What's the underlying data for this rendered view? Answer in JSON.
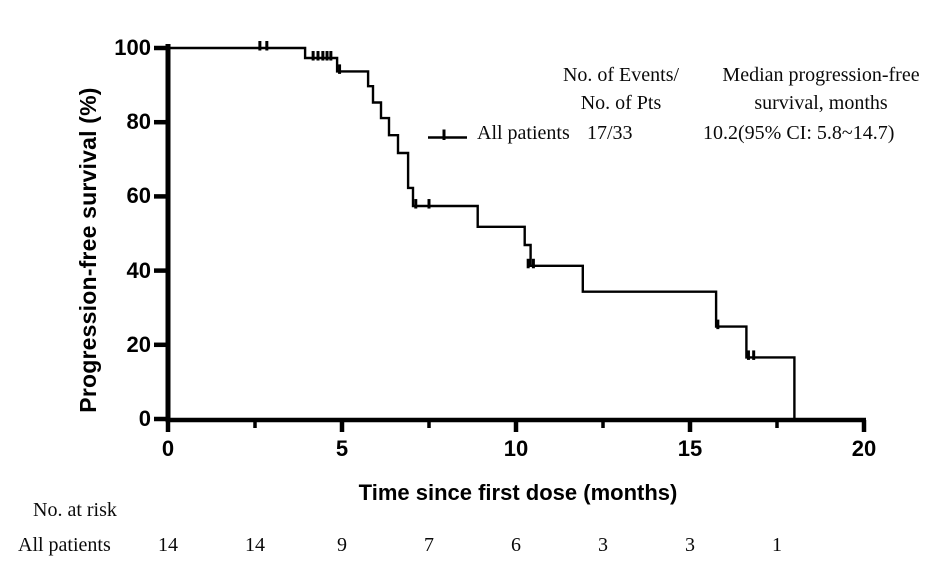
{
  "figure": {
    "y_axis_title": "Progression-free survival (%)",
    "x_axis_title": "Time since first dose (months)",
    "legend": {
      "col1_header_line1": "No. of Events/",
      "col1_header_line2": "No. of Pts",
      "col2_header_line1": "Median progression-free",
      "col2_header_line2": "survival, months",
      "series_label": "All patients",
      "events_over_pts": "17/33",
      "median_value": "10.2(95% CI: 5.8~14.7)"
    },
    "at_risk": {
      "title": "No. at risk",
      "row_label": "All patients",
      "counts": [
        "14",
        "14",
        "9",
        "7",
        "6",
        "3",
        "3",
        "1"
      ]
    }
  },
  "chart_data": {
    "type": "line",
    "subtype": "kaplan-meier-step",
    "title": "",
    "xlabel": "Time since first dose (months)",
    "ylabel": "Progression-free survival (%)",
    "xlim": [
      0,
      20
    ],
    "ylim": [
      0,
      100
    ],
    "x_major_ticks": [
      0,
      5,
      10,
      15,
      20
    ],
    "x_minor_ticks": [
      2.5,
      7.5,
      12.5,
      17.5
    ],
    "y_ticks": [
      100,
      80,
      60,
      40,
      20,
      0
    ],
    "grid": false,
    "legend_position": "upper-right-inside",
    "line_color": "#000000",
    "series": [
      {
        "name": "All patients",
        "events_over_pts": "17/33",
        "median_pfs": "10.2(95% CI: 5.8~14.7)",
        "steps": [
          [
            0,
            100
          ],
          [
            3.94,
            97.3
          ],
          [
            4.86,
            93.7
          ],
          [
            5.75,
            89.7
          ],
          [
            5.89,
            85.3
          ],
          [
            6.12,
            81.1
          ],
          [
            6.35,
            76.5
          ],
          [
            6.61,
            71.7
          ],
          [
            6.9,
            62.3
          ],
          [
            7.04,
            57.4
          ],
          [
            8.9,
            51.8
          ],
          [
            10.25,
            46.9
          ],
          [
            10.42,
            41.3
          ],
          [
            11.92,
            34.3
          ],
          [
            15.75,
            24.9
          ],
          [
            16.62,
            16.6
          ],
          [
            18.0,
            0
          ]
        ],
        "censor_marks": [
          [
            2.64,
            100
          ],
          [
            2.84,
            100
          ],
          [
            4.17,
            97.3
          ],
          [
            4.31,
            97.3
          ],
          [
            4.45,
            97.3
          ],
          [
            4.57,
            97.3
          ],
          [
            4.68,
            97.3
          ],
          [
            4.93,
            93.7
          ],
          [
            7.12,
            57.4
          ],
          [
            7.5,
            57.4
          ],
          [
            10.35,
            41.3
          ],
          [
            10.5,
            41.3
          ],
          [
            15.8,
            24.9
          ],
          [
            16.68,
            16.6
          ],
          [
            16.83,
            16.6
          ]
        ]
      }
    ],
    "at_risk_times": [
      0,
      2.5,
      5,
      7.5,
      10,
      12.5,
      15,
      17.5
    ],
    "at_risk_counts": [
      14,
      14,
      9,
      7,
      6,
      3,
      3,
      1
    ]
  }
}
